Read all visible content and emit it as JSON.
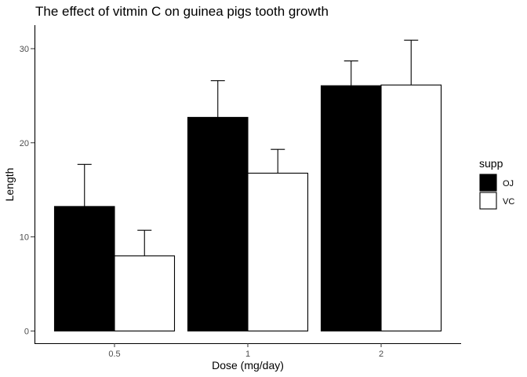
{
  "chart_data": {
    "type": "bar",
    "title": "The effect of vitmin C on guinea pigs tooth growth",
    "xlabel": "Dose (mg/day)",
    "ylabel": "Length",
    "categories": [
      "0.5",
      "1",
      "2"
    ],
    "y_ticks": [
      "0",
      "10",
      "20",
      "30"
    ],
    "ylim": [
      -1.3,
      32.5
    ],
    "legend": {
      "title": "supp",
      "position": "right"
    },
    "grid": false,
    "series": [
      {
        "name": "OJ",
        "color": "#000000",
        "values": [
          13.23,
          22.7,
          26.06
        ],
        "upper": [
          17.7,
          26.6,
          28.7
        ]
      },
      {
        "name": "VC",
        "color": "#ffffff",
        "values": [
          7.98,
          16.77,
          26.14
        ],
        "upper": [
          10.7,
          19.3,
          30.9
        ]
      }
    ]
  }
}
